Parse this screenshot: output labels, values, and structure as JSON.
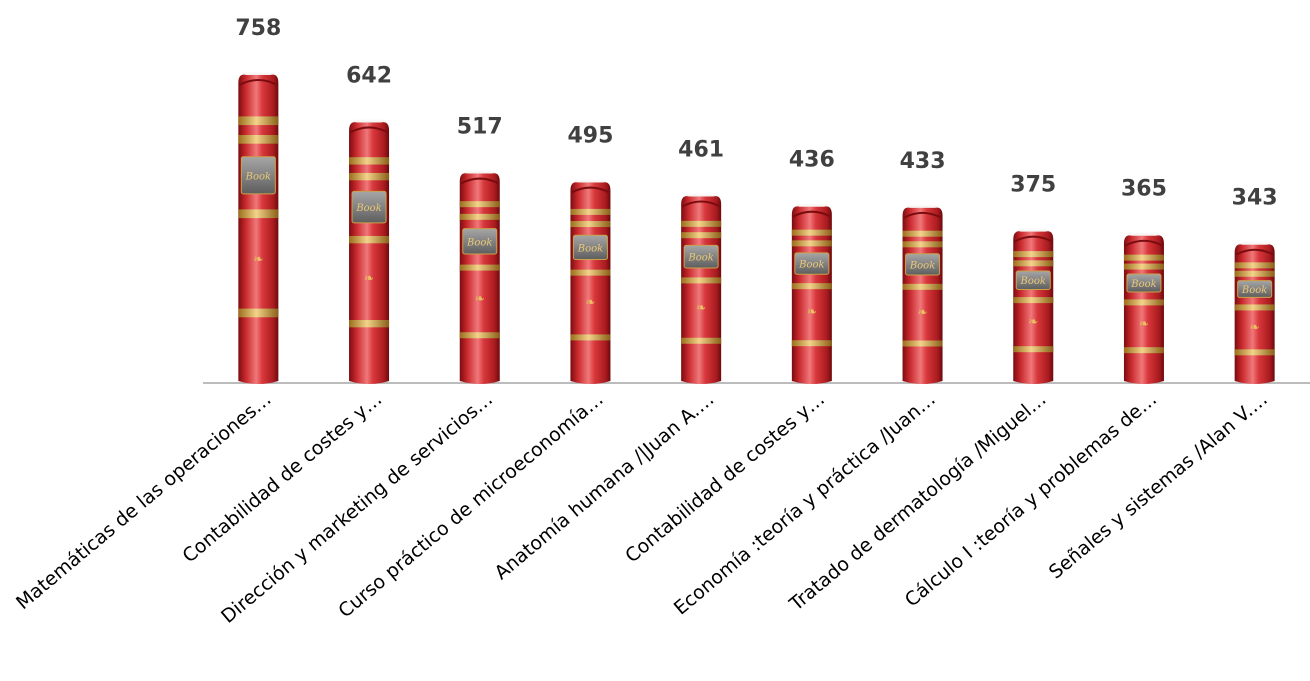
{
  "chart_data": {
    "type": "bar",
    "title": "",
    "xlabel": "",
    "ylabel": "",
    "ylim": [
      0,
      800
    ],
    "grid": false,
    "legend": "none",
    "categories": [
      "Matemáticas de las operaciones…",
      "Contabilidad de costes y…",
      "Dirección y marketing de servicios…",
      "Curso práctico de microeconomía…",
      "Anatomía humana /|Juan A.…",
      "Contabilidad de costes y…",
      "Economía :teoría y práctica /Juan…",
      "Tratado de dermatología /Miguel…",
      "Cálculo I :teoría y problemas de…",
      "Señales y sistemas /Alan V.…"
    ],
    "values": [
      758,
      642,
      517,
      495,
      461,
      436,
      433,
      375,
      365,
      343
    ],
    "bar_style": "book-spine",
    "book_label": "Book",
    "colors": {
      "book_red": "#c8282c",
      "book_highlight": "#f0787a",
      "book_shadow": "#7a0c10",
      "gold_band": "#d9a94a",
      "label_plate": "#8a8a8a",
      "axis": "#a6a6a6",
      "value_text": "#404040"
    }
  }
}
